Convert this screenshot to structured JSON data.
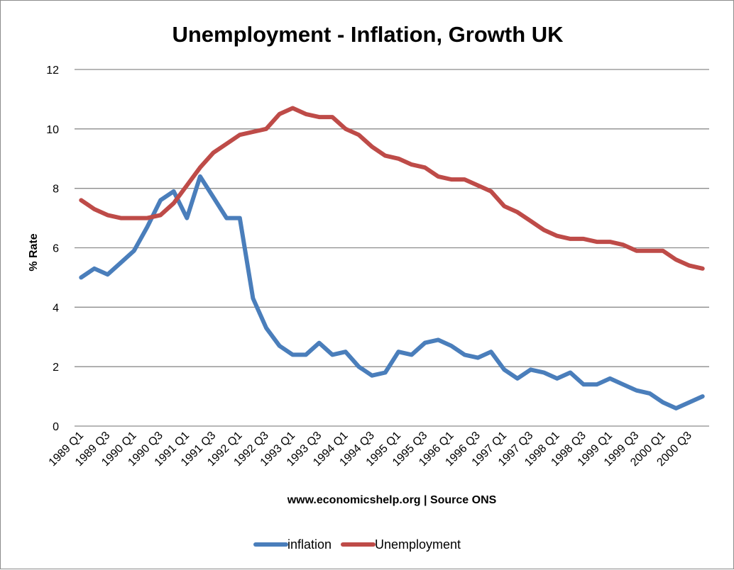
{
  "chart_data": {
    "type": "line",
    "title": "Unemployment - Inflation, Growth UK",
    "xlabel": "www.economicshelp.org | Source ONS",
    "ylabel": "% Rate",
    "ylim": [
      0,
      12
    ],
    "yticks": [
      0,
      2,
      4,
      6,
      8,
      10,
      12
    ],
    "grid": true,
    "legend_position": "bottom",
    "x": [
      "1989 Q1",
      "1989 Q2",
      "1989 Q3",
      "1989 Q4",
      "1990 Q1",
      "1990 Q2",
      "1990 Q3",
      "1990 Q4",
      "1991 Q1",
      "1991 Q2",
      "1991 Q3",
      "1991 Q4",
      "1992 Q1",
      "1992 Q2",
      "1992 Q3",
      "1992 Q4",
      "1993 Q1",
      "1993 Q2",
      "1993 Q3",
      "1993 Q4",
      "1994 Q1",
      "1994 Q2",
      "1994 Q3",
      "1994 Q4",
      "1995 Q1",
      "1995 Q2",
      "1995 Q3",
      "1995 Q4",
      "1996 Q1",
      "1996 Q2",
      "1996 Q3",
      "1996 Q4",
      "1997 Q1",
      "1997 Q2",
      "1997 Q3",
      "1997 Q4",
      "1998 Q1",
      "1998 Q2",
      "1998 Q3",
      "1998 Q4",
      "1999 Q1",
      "1999 Q2",
      "1999 Q3",
      "1999 Q4",
      "2000 Q1",
      "2000 Q2",
      "2000 Q3",
      "2000 Q4"
    ],
    "x_tick_labels": [
      "1989 Q1",
      "1989 Q3",
      "1990 Q1",
      "1990 Q3",
      "1991 Q1",
      "1991 Q3",
      "1992 Q1",
      "1992 Q3",
      "1993 Q1",
      "1993 Q3",
      "1994 Q1",
      "1994 Q3",
      "1995 Q1",
      "1995 Q3",
      "1996 Q1",
      "1996 Q3",
      "1997 Q1",
      "1997 Q3",
      "1998 Q1",
      "1998 Q3",
      "1999 Q1",
      "1999 Q3",
      "2000 Q1",
      "2000 Q3"
    ],
    "series": [
      {
        "name": "inflation",
        "color": "#4a7ebb",
        "values": [
          5.0,
          5.3,
          5.1,
          5.5,
          5.9,
          6.7,
          7.6,
          7.9,
          7.0,
          8.4,
          7.7,
          7.0,
          7.0,
          4.3,
          3.3,
          2.7,
          2.4,
          2.4,
          2.8,
          2.4,
          2.5,
          2.0,
          1.7,
          1.8,
          2.5,
          2.4,
          2.8,
          2.9,
          2.7,
          2.4,
          2.3,
          2.5,
          1.9,
          1.6,
          1.9,
          1.8,
          1.6,
          1.8,
          1.4,
          1.4,
          1.6,
          1.4,
          1.2,
          1.1,
          0.8,
          0.6,
          0.8,
          1.0
        ]
      },
      {
        "name": "Unemployment",
        "color": "#be4b48",
        "values": [
          7.6,
          7.3,
          7.1,
          7.0,
          7.0,
          7.0,
          7.1,
          7.5,
          8.1,
          8.7,
          9.2,
          9.5,
          9.8,
          9.9,
          10.0,
          10.5,
          10.7,
          10.5,
          10.4,
          10.4,
          10.0,
          9.8,
          9.4,
          9.1,
          9.0,
          8.8,
          8.7,
          8.4,
          8.3,
          8.3,
          8.1,
          7.9,
          7.4,
          7.2,
          6.9,
          6.6,
          6.4,
          6.3,
          6.3,
          6.2,
          6.2,
          6.1,
          5.9,
          5.9,
          5.9,
          5.6,
          5.4,
          5.3
        ]
      }
    ]
  }
}
